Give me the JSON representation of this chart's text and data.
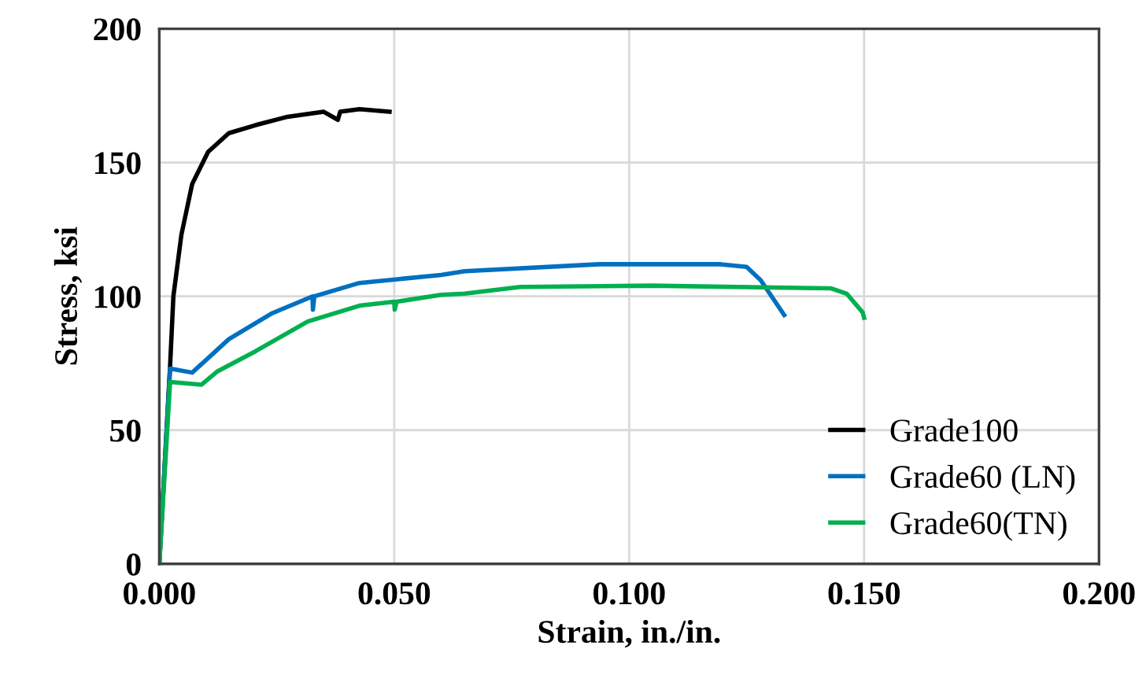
{
  "chart_data": {
    "type": "line",
    "xlabel": "Strain, in./in.",
    "ylabel": "Stress, ksi",
    "xlim": [
      0,
      0.2
    ],
    "ylim": [
      0,
      200
    ],
    "xticks": [
      {
        "value": 0,
        "label": "0.000"
      },
      {
        "value": 0.05,
        "label": "0.050"
      },
      {
        "value": 0.1,
        "label": "0.100"
      },
      {
        "value": 0.15,
        "label": "0.150"
      },
      {
        "value": 0.2,
        "label": "0.200"
      }
    ],
    "yticks": [
      0,
      50,
      100,
      150,
      200
    ],
    "grid": true,
    "legend": "bottom right",
    "marker": "none",
    "line_style": "solid",
    "series": [
      {
        "name": "Grade100",
        "color": "#000000",
        "x": [
          0,
          0.0023,
          0.003,
          0.0047,
          0.007,
          0.0104,
          0.0148,
          0.0205,
          0.027,
          0.035,
          0.038,
          0.0385,
          0.0426,
          0.049
        ],
        "values": [
          0,
          74,
          100,
          123,
          142,
          154,
          161,
          164,
          167,
          169,
          166,
          169,
          170,
          169
        ]
      },
      {
        "name": "Grade60 (LN)",
        "color": "#0070c0",
        "x": [
          0,
          0.0023,
          0.007,
          0.0148,
          0.0238,
          0.0326,
          0.0327,
          0.033,
          0.0426,
          0.06,
          0.065,
          0.0936,
          0.1195,
          0.125,
          0.128,
          0.133
        ],
        "values": [
          0,
          73,
          71.5,
          84,
          93.5,
          100,
          95,
          100,
          105,
          108,
          109.4,
          112,
          112,
          111,
          106,
          93
        ]
      },
      {
        "name": "Grade60(TN)",
        "color": "#00b050",
        "x": [
          0,
          0.0023,
          0.009,
          0.0124,
          0.0205,
          0.0316,
          0.0426,
          0.05,
          0.0501,
          0.0505,
          0.06,
          0.065,
          0.0768,
          0.1047,
          0.143,
          0.1463,
          0.1497,
          0.15
        ],
        "values": [
          0,
          68,
          67,
          72,
          79.5,
          90.6,
          96.5,
          98,
          95,
          98,
          100.6,
          101,
          103.5,
          104,
          103,
          101,
          94,
          92
        ]
      }
    ]
  }
}
